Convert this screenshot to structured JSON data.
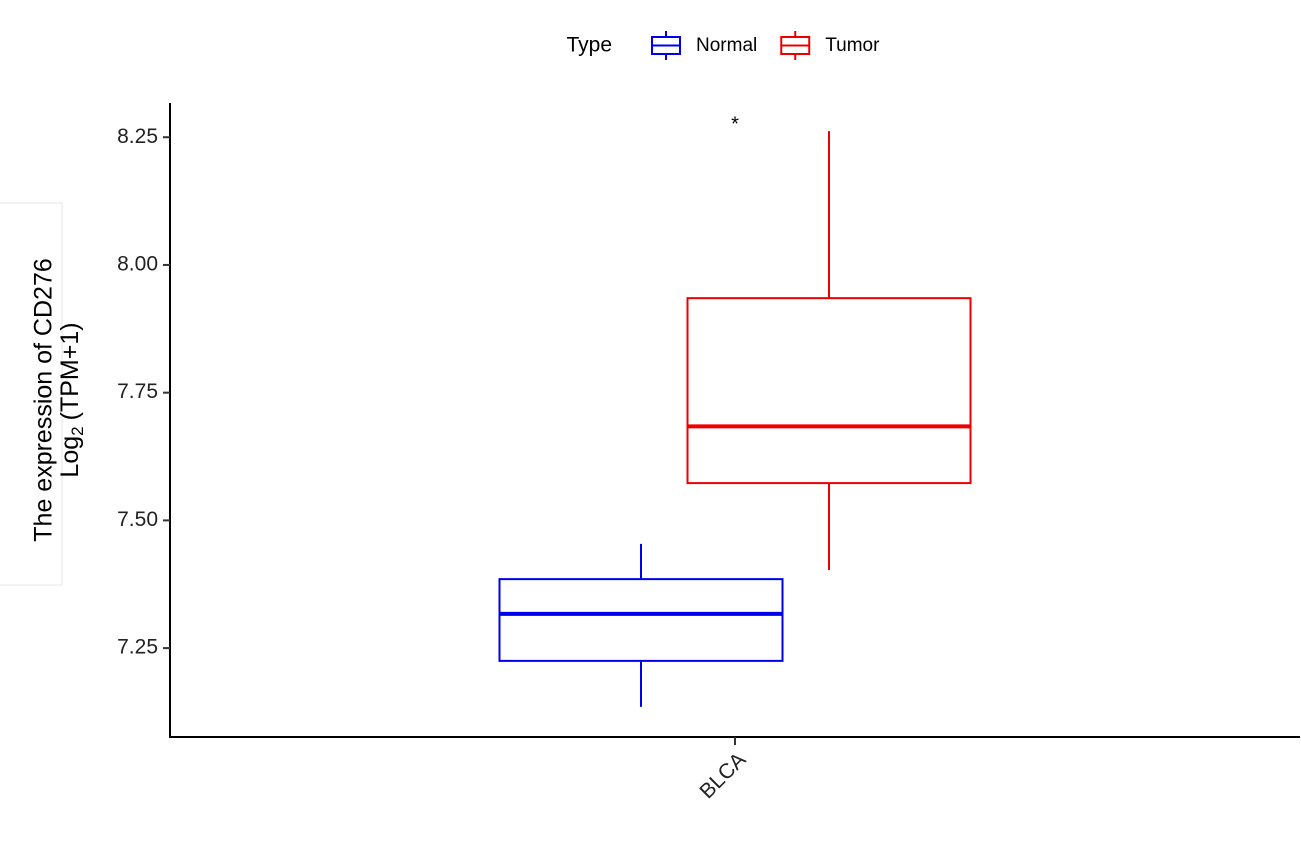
{
  "chart_data": {
    "type": "box",
    "legend_title": "Type",
    "y_label": "The expression of CD276",
    "y_label_2": [
      "Log",
      "2",
      "(TPM+1)"
    ],
    "categories": [
      "BLCA"
    ],
    "annotation": "*",
    "series": [
      {
        "name": "Normal",
        "color": "#0000ee",
        "min": [
          7.135
        ],
        "q1": [
          7.225
        ],
        "median": [
          7.317
        ],
        "q3": [
          7.385
        ],
        "max": [
          7.454
        ]
      },
      {
        "name": "Tumor",
        "color": "#ee0000",
        "min": [
          7.403
        ],
        "q1": [
          7.573
        ],
        "median": [
          7.684
        ],
        "q3": [
          7.935
        ],
        "max": [
          8.262
        ]
      }
    ],
    "ylim": [
      7.076,
      8.317
    ],
    "yticks": [
      7.25,
      {
        "value": 7.5,
        "label": "7.50"
      },
      7.75,
      {
        "value": 8,
        "label": "8.00"
      },
      8.25
    ],
    "grid": false
  }
}
